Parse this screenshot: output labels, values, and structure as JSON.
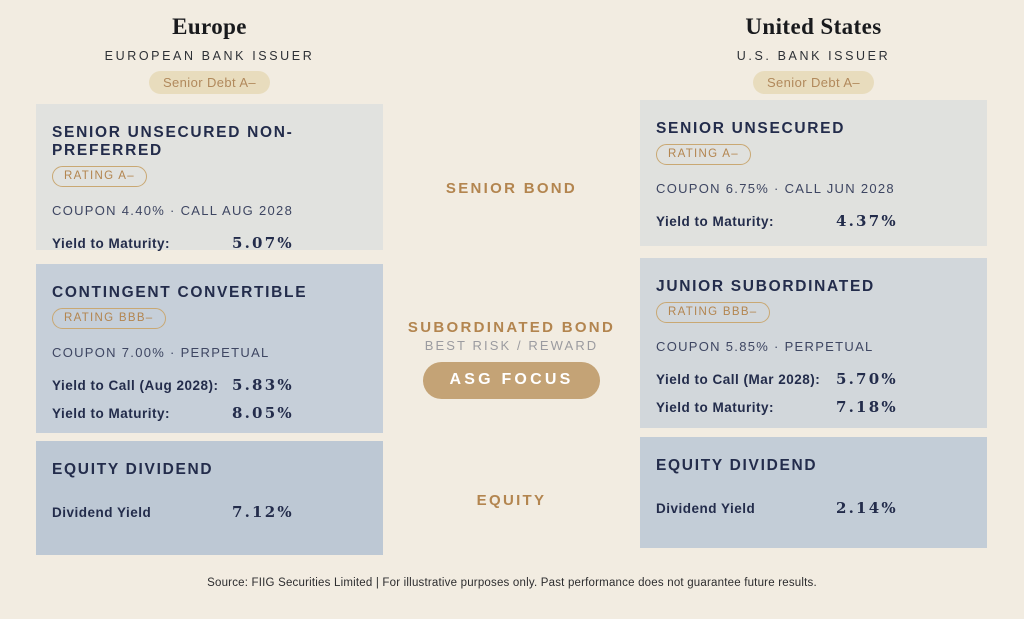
{
  "theme": {
    "background": "#f2ece1",
    "navy": "#232c4b",
    "tan_accent": "#b3854f",
    "focus_button_bg": "#c4a376",
    "header_badge_bg": "#e8dcbd",
    "card_gray": "#e1e2df",
    "card_bluegray": "#c6cfd9",
    "note_gray": "#9b9ba0"
  },
  "europe": {
    "title": "Europe",
    "subtitle": "EUROPEAN BANK ISSUER",
    "badge": "Senior Debt A–",
    "cards": [
      {
        "title": "SENIOR UNSECURED NON-PREFERRED",
        "rating": "RATING A–",
        "terms": "COUPON 4.40% · CALL AUG 2028",
        "rows": [
          {
            "label": "Yield to Maturity:",
            "value": "5.07%"
          }
        ]
      },
      {
        "title": "CONTINGENT CONVERTIBLE",
        "rating": "RATING BBB–",
        "terms": "COUPON 7.00% · PERPETUAL",
        "rows": [
          {
            "label": "Yield to Call (Aug 2028):",
            "value": "5.83%"
          },
          {
            "label": "Yield to Maturity:",
            "value": "8.05%"
          }
        ]
      },
      {
        "title": "EQUITY DIVIDEND",
        "rows": [
          {
            "label": "Dividend Yield",
            "value": "7.12%"
          }
        ]
      }
    ]
  },
  "united_states": {
    "title": "United States",
    "subtitle": "U.S. BANK ISSUER",
    "badge": "Senior Debt A–",
    "cards": [
      {
        "title": "SENIOR UNSECURED",
        "rating": "RATING A–",
        "terms": "COUPON 6.75% · CALL JUN 2028",
        "rows": [
          {
            "label": "Yield to Maturity:",
            "value": "4.37%"
          }
        ]
      },
      {
        "title": "JUNIOR SUBORDINATED",
        "rating": "RATING BBB–",
        "terms": "COUPON 5.85% · PERPETUAL",
        "rows": [
          {
            "label": "Yield to Call (Mar 2028):",
            "value": "5.70%"
          },
          {
            "label": "Yield to Maturity:",
            "value": "7.18%"
          }
        ]
      },
      {
        "title": "EQUITY DIVIDEND",
        "rows": [
          {
            "label": "Dividend Yield",
            "value": "2.14%"
          }
        ]
      }
    ]
  },
  "middle": {
    "senior_label": "SENIOR BOND",
    "subordinated_label": "SUBORDINATED BOND",
    "subordinated_note": "BEST RISK / REWARD",
    "focus_button": "ASG FOCUS",
    "equity_label": "EQUITY"
  },
  "footer": {
    "source": "Source: FIIG Securities Limited | For illustrative purposes only. Past performance does not guarantee future results."
  }
}
